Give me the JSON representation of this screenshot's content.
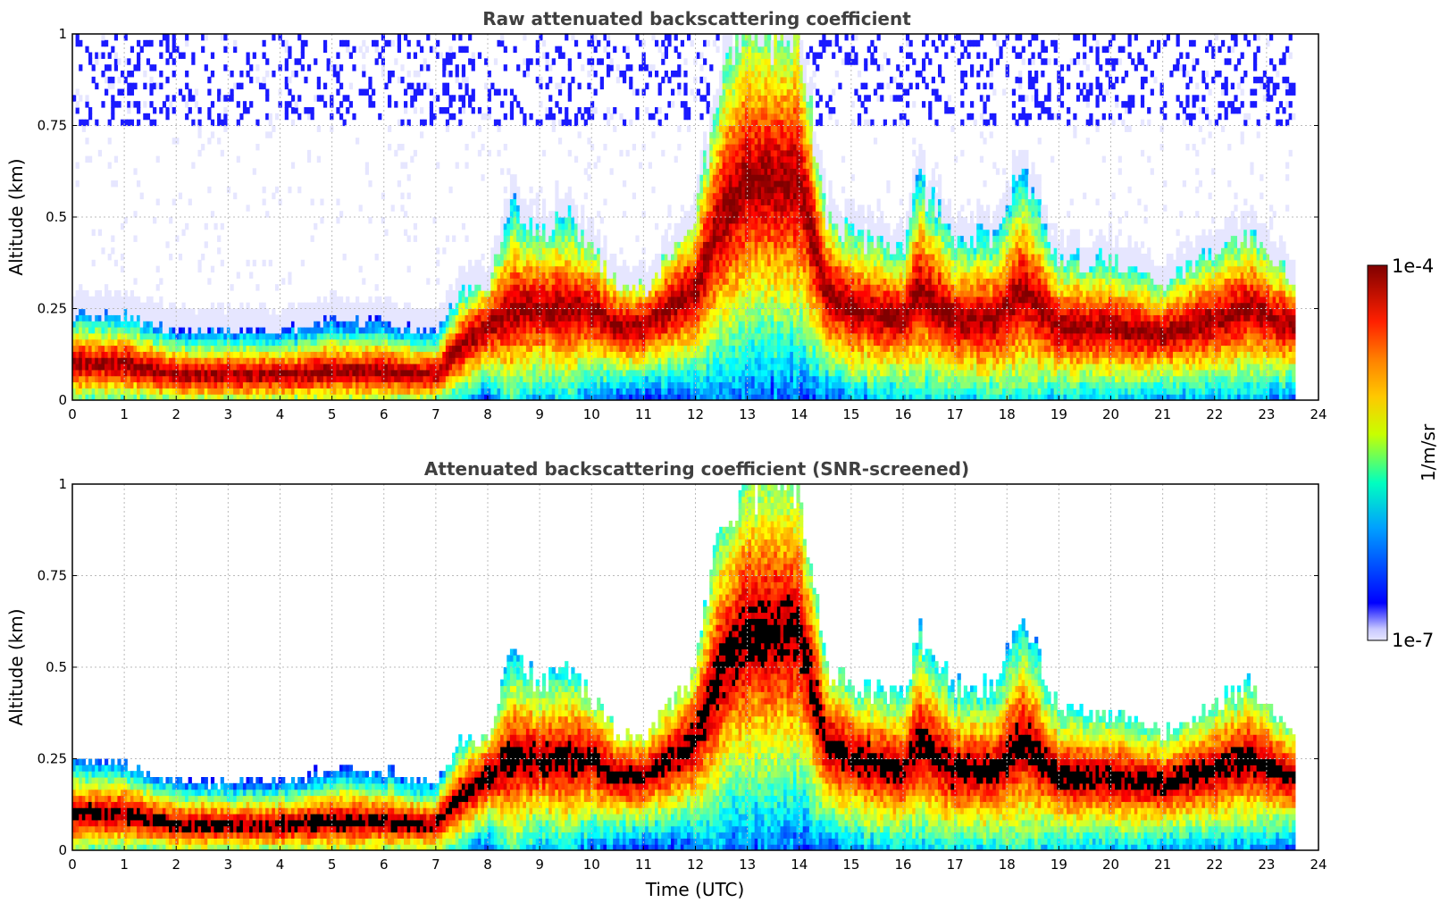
{
  "chart_data": [
    {
      "type": "heatmap",
      "title": "Raw attenuated backscattering coefficient",
      "xlabel": "",
      "ylabel": "Altitude (km)",
      "xlim": [
        0,
        24
      ],
      "ylim": [
        0,
        1
      ],
      "x_ticks": [
        "0",
        "1",
        "2",
        "3",
        "4",
        "5",
        "6",
        "7",
        "8",
        "9",
        "10",
        "11",
        "12",
        "13",
        "14",
        "15",
        "16",
        "17",
        "18",
        "19",
        "20",
        "21",
        "22",
        "23",
        "24"
      ],
      "y_ticks": [
        "0",
        "0.25",
        "0.5",
        "0.75",
        "1"
      ],
      "data_time_range_utc": [
        0,
        23.55
      ],
      "grid": true,
      "profile_time_utc": [
        0,
        1,
        2,
        3,
        4,
        5,
        6,
        7,
        7.5,
        8,
        8.5,
        9,
        9.5,
        10,
        10.5,
        11,
        12,
        12.5,
        13,
        13.5,
        14,
        14.5,
        15,
        16,
        16.3,
        17,
        17.8,
        18.3,
        19,
        20,
        21,
        22,
        22.7,
        23.5
      ],
      "layer_top_km": [
        0.24,
        0.23,
        0.19,
        0.19,
        0.19,
        0.22,
        0.22,
        0.18,
        0.3,
        0.3,
        0.55,
        0.45,
        0.5,
        0.42,
        0.32,
        0.3,
        0.5,
        0.9,
        1.0,
        1.0,
        1.0,
        0.5,
        0.45,
        0.42,
        0.6,
        0.45,
        0.45,
        0.65,
        0.38,
        0.38,
        0.32,
        0.4,
        0.45,
        0.33
      ],
      "peak_altitude_km": [
        0.1,
        0.1,
        0.07,
        0.07,
        0.07,
        0.08,
        0.08,
        0.07,
        0.15,
        0.2,
        0.25,
        0.25,
        0.25,
        0.25,
        0.2,
        0.2,
        0.3,
        0.5,
        0.6,
        0.6,
        0.6,
        0.3,
        0.25,
        0.22,
        0.3,
        0.22,
        0.22,
        0.3,
        0.2,
        0.2,
        0.18,
        0.22,
        0.25,
        0.2
      ]
    },
    {
      "type": "heatmap",
      "title": "Attenuated backscattering coefficient (SNR-screened)",
      "xlabel": "Time (UTC)",
      "ylabel": "Altitude (km)",
      "xlim": [
        0,
        24
      ],
      "ylim": [
        0,
        1
      ],
      "x_ticks": [
        "0",
        "1",
        "2",
        "3",
        "4",
        "5",
        "6",
        "7",
        "8",
        "9",
        "10",
        "11",
        "12",
        "13",
        "14",
        "15",
        "16",
        "17",
        "18",
        "19",
        "20",
        "21",
        "22",
        "23",
        "24"
      ],
      "y_ticks": [
        "0",
        "0.25",
        "0.5",
        "0.75",
        "1"
      ],
      "data_time_range_utc": [
        0,
        23.55
      ],
      "grid": true,
      "profile_time_utc": [
        0,
        1,
        2,
        3,
        4,
        5,
        6,
        7,
        7.5,
        8,
        8.5,
        9,
        9.5,
        10,
        10.5,
        11,
        12,
        12.5,
        13,
        13.5,
        14,
        14.5,
        15,
        16,
        16.3,
        17,
        17.8,
        18.3,
        19,
        20,
        21,
        22,
        22.7,
        23.5
      ],
      "layer_top_km": [
        0.24,
        0.23,
        0.19,
        0.19,
        0.19,
        0.22,
        0.22,
        0.18,
        0.3,
        0.3,
        0.55,
        0.45,
        0.5,
        0.42,
        0.32,
        0.3,
        0.5,
        0.9,
        1.0,
        1.0,
        1.0,
        0.5,
        0.45,
        0.42,
        0.6,
        0.45,
        0.45,
        0.65,
        0.38,
        0.38,
        0.32,
        0.4,
        0.45,
        0.33
      ],
      "peak_altitude_km": [
        0.1,
        0.1,
        0.07,
        0.07,
        0.07,
        0.08,
        0.08,
        0.07,
        0.15,
        0.2,
        0.25,
        0.25,
        0.25,
        0.25,
        0.2,
        0.2,
        0.3,
        0.5,
        0.6,
        0.6,
        0.6,
        0.3,
        0.25,
        0.22,
        0.3,
        0.22,
        0.22,
        0.3,
        0.2,
        0.2,
        0.18,
        0.22,
        0.25,
        0.2
      ]
    }
  ],
  "colorbar": {
    "label": "1/m/sr",
    "max_label": "1e-4",
    "min_label": "1e-7",
    "colormap": "jet",
    "log_range": [
      1e-07,
      0.0001
    ]
  }
}
